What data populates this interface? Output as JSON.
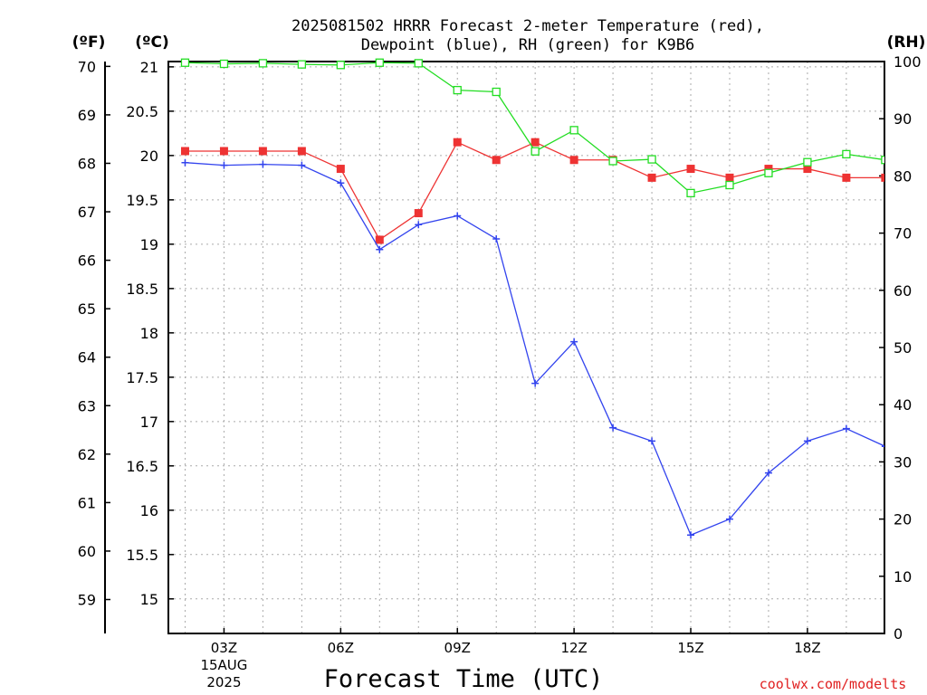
{
  "title_line1": "2025081502 HRRR Forecast 2-meter Temperature (red),",
  "title_line2": "Dewpoint (blue), RH (green) for K9B6",
  "colors": {
    "temperature": "#ee3333",
    "dewpoint": "#3344ee",
    "rh": "#22dd22",
    "grid": "#aaaaaa",
    "credit": "#e02020"
  },
  "credit": "coolwx.com/modelts",
  "chart_data": {
    "type": "line",
    "xlabel": "Forecast Time (UTC)",
    "x_hours": [
      2,
      3,
      4,
      5,
      6,
      7,
      8,
      9,
      10,
      11,
      12,
      13,
      14,
      15,
      16,
      17,
      18,
      19,
      20
    ],
    "xlim": [
      1.57,
      19.98
    ],
    "x_ticks": [
      {
        "hour": 3,
        "label": "03Z",
        "sub1": "15AUG",
        "sub2": "2025"
      },
      {
        "hour": 6,
        "label": "06Z",
        "sub1": "",
        "sub2": ""
      },
      {
        "hour": 9,
        "label": "09Z",
        "sub1": "",
        "sub2": ""
      },
      {
        "hour": 12,
        "label": "12Z",
        "sub1": "",
        "sub2": ""
      },
      {
        "hour": 15,
        "label": "15Z",
        "sub1": "",
        "sub2": ""
      },
      {
        "hour": 18,
        "label": "18Z",
        "sub1": "",
        "sub2": ""
      }
    ],
    "axes": {
      "fahrenheit": {
        "unit_label": "(ºF)",
        "range": [
          58.3,
          70.1
        ],
        "ticks": [
          "59",
          "60",
          "61",
          "62",
          "63",
          "64",
          "65",
          "66",
          "67",
          "68",
          "69",
          "70"
        ]
      },
      "celsius": {
        "unit_label": "(ºC)",
        "range": [
          14.61,
          21.06
        ],
        "ticks": [
          "15",
          "15.5",
          "16",
          "16.5",
          "17",
          "17.5",
          "18",
          "18.5",
          "19",
          "19.5",
          "20",
          "20.5",
          "21"
        ]
      },
      "rh": {
        "unit_label": "(RH)",
        "range": [
          0,
          100
        ],
        "ticks": [
          "0",
          "10",
          "20",
          "30",
          "40",
          "50",
          "60",
          "70",
          "80",
          "90",
          "100"
        ]
      }
    },
    "grid": true,
    "series": [
      {
        "name": "Temperature",
        "axis": "celsius",
        "marker": "filled-square",
        "values": [
          20.05,
          20.05,
          20.05,
          20.05,
          19.85,
          19.05,
          19.35,
          20.15,
          19.95,
          20.15,
          19.95,
          19.95,
          19.75,
          19.85,
          19.75,
          19.85,
          19.85,
          19.75,
          19.75
        ]
      },
      {
        "name": "Dewpoint",
        "axis": "celsius",
        "marker": "plus",
        "values": [
          19.92,
          19.89,
          19.9,
          19.89,
          19.69,
          18.94,
          19.22,
          19.32,
          19.06,
          17.43,
          17.9,
          16.93,
          16.78,
          15.72,
          15.9,
          16.42,
          16.78,
          16.92,
          16.72
        ]
      },
      {
        "name": "RH",
        "axis": "rh",
        "marker": "open-square",
        "values": [
          99.8,
          99.6,
          99.7,
          99.5,
          99.4,
          99.8,
          99.7,
          95.0,
          94.7,
          84.3,
          88.0,
          82.6,
          82.9,
          77.0,
          78.4,
          80.5,
          82.4,
          83.8,
          82.8
        ]
      }
    ]
  }
}
